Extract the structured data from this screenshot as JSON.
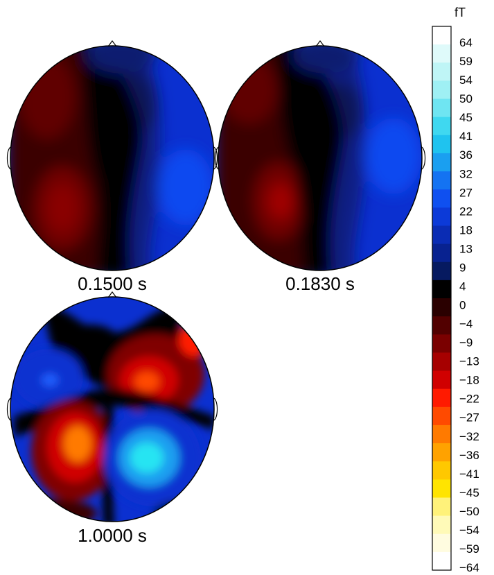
{
  "maps": [
    {
      "label": "0.1500 s"
    },
    {
      "label": "0.1830 s"
    },
    {
      "label": "1.0000 s"
    }
  ],
  "colorbar": {
    "unit": "fT",
    "ticks": [
      "64",
      "59",
      "54",
      "50",
      "45",
      "41",
      "36",
      "32",
      "27",
      "22",
      "18",
      "13",
      "9",
      "4",
      "0",
      "−4",
      "−9",
      "−13",
      "−18",
      "−22",
      "−27",
      "−32",
      "−36",
      "−41",
      "−45",
      "−50",
      "−54",
      "−59",
      "−64"
    ],
    "colors": [
      "#ffffff",
      "#dffafa",
      "#bff5f6",
      "#9ff0f4",
      "#6fe5f2",
      "#3fd8f0",
      "#1fc3ef",
      "#1a9ff0",
      "#1473f2",
      "#0f50f0",
      "#0c3ad8",
      "#0a2cb4",
      "#082290",
      "#061a60",
      "#000000",
      "#2a0000",
      "#520000",
      "#7a0000",
      "#a60000",
      "#d00000",
      "#ff1a00",
      "#ff4a00",
      "#ff7a00",
      "#ffa200",
      "#ffc800",
      "#ffe400",
      "#fff27a",
      "#fffab8",
      "#fffce0",
      "#ffffff"
    ],
    "colors_note_excluded": true
  },
  "palette": {
    "black": "#000000",
    "deep_blue": "#0a1a70",
    "blue": "#0b30d0",
    "bright_blue": "#0f4ef0",
    "cyan": "#28e4f2",
    "dark_red": "#3a0000",
    "red": "#800000",
    "bright_red": "#e01000",
    "orange": "#ff7a00"
  }
}
